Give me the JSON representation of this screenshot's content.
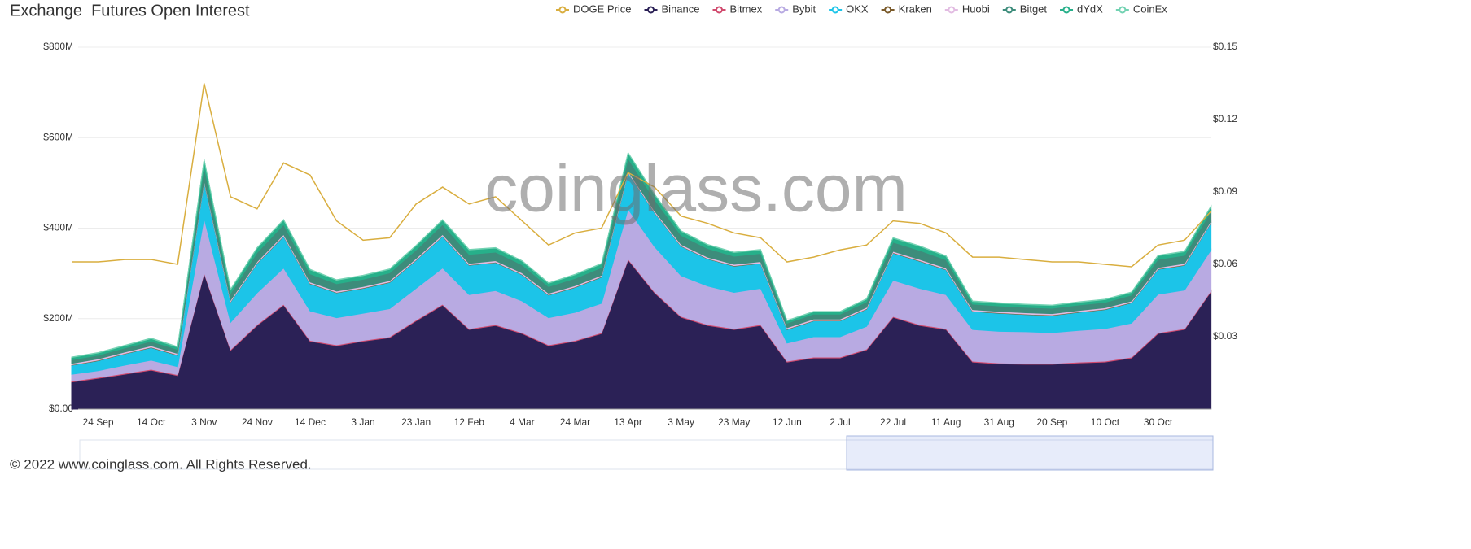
{
  "chart_data": {
    "type": "area",
    "title": "Exchange  Futures Open Interest",
    "watermark": "coinglass.com",
    "footer": "© 2022 www.coinglass.com. All Rights Reserved.",
    "categories": [
      null,
      "24 Sep",
      null,
      "14 Oct",
      null,
      "3 Nov",
      null,
      "24 Nov",
      null,
      "14 Dec",
      null,
      "3 Jan",
      null,
      "23 Jan",
      null,
      "12 Feb",
      null,
      "4 Mar",
      null,
      "24 Mar",
      null,
      "13 Apr",
      null,
      "3 May",
      null,
      "23 May",
      null,
      "12 Jun",
      null,
      "2 Jul",
      null,
      "22 Jul",
      null,
      "11 Aug",
      null,
      "31 Aug",
      null,
      "20 Sep",
      null,
      "10 Oct",
      null,
      "30 Oct",
      null,
      null
    ],
    "ylim": [
      0,
      800
    ],
    "yticks": [
      {
        "value": 0,
        "label": "$0.00"
      },
      {
        "value": 200,
        "label": "$200M"
      },
      {
        "value": 400,
        "label": "$400M"
      },
      {
        "value": 600,
        "label": "$600M"
      },
      {
        "value": 800,
        "label": "$800M"
      }
    ],
    "y2lim": [
      0,
      0.15
    ],
    "y2ticks": [
      {
        "value": 0.03,
        "label": "$0.03"
      },
      {
        "value": 0.06,
        "label": "$0.06"
      },
      {
        "value": 0.09,
        "label": "$0.09"
      },
      {
        "value": 0.12,
        "label": "$0.12"
      },
      {
        "value": 0.15,
        "label": "$0.15"
      }
    ],
    "grid": true,
    "legend": "top-right",
    "series": [
      {
        "name": "DOGE Price",
        "color": "#d9ae3f",
        "axis": "y2",
        "values": [
          0.061,
          0.061,
          0.062,
          0.062,
          0.06,
          0.135,
          0.088,
          0.083,
          0.102,
          0.097,
          0.078,
          0.07,
          0.071,
          0.085,
          0.092,
          0.085,
          0.088,
          0.078,
          0.068,
          0.073,
          0.075,
          0.098,
          0.092,
          0.08,
          0.077,
          0.073,
          0.071,
          0.061,
          0.063,
          0.066,
          0.068,
          0.078,
          0.077,
          0.073,
          0.063,
          0.063,
          0.062,
          0.061,
          0.061,
          0.06,
          0.059,
          0.068,
          0.07,
          0.082
        ]
      },
      {
        "name": "Binance",
        "color": "#2b2156",
        "values": [
          60,
          68,
          77,
          86,
          74,
          300,
          130,
          185,
          230,
          150,
          140,
          150,
          158,
          195,
          230,
          176,
          185,
          167,
          140,
          150,
          167,
          330,
          257,
          203,
          185,
          176,
          185,
          104,
          113,
          113,
          131,
          203,
          185,
          176,
          104,
          100,
          99,
          99,
          102,
          104,
          113,
          167,
          176,
          260
        ]
      },
      {
        "name": "Bitmex",
        "color": "#d14a6e",
        "values": [
          2,
          2,
          2,
          2,
          2,
          2,
          2,
          2,
          2,
          2,
          2,
          2,
          2,
          2,
          2,
          2,
          2,
          2,
          2,
          2,
          2,
          2,
          2,
          2,
          2,
          2,
          2,
          2,
          2,
          2,
          2,
          2,
          2,
          2,
          2,
          2,
          2,
          2,
          2,
          2,
          2,
          2,
          2,
          2
        ]
      },
      {
        "name": "Bybit",
        "color": "#b8aae2",
        "values": [
          15,
          15,
          18,
          20,
          18,
          120,
          60,
          70,
          80,
          65,
          60,
          60,
          62,
          70,
          80,
          75,
          75,
          70,
          60,
          62,
          65,
          110,
          100,
          90,
          85,
          80,
          80,
          40,
          45,
          45,
          50,
          80,
          80,
          75,
          70,
          70,
          70,
          68,
          70,
          72,
          75,
          85,
          85,
          90
        ]
      },
      {
        "name": "OKX",
        "color": "#1cc4e8",
        "values": [
          20,
          22,
          25,
          28,
          25,
          80,
          45,
          65,
          70,
          60,
          55,
          55,
          58,
          62,
          70,
          65,
          62,
          58,
          50,
          55,
          58,
          80,
          75,
          65,
          60,
          58,
          55,
          30,
          35,
          35,
          38,
          60,
          60,
          55,
          40,
          40,
          38,
          38,
          40,
          42,
          45,
          55,
          55,
          60
        ]
      },
      {
        "name": "Kraken",
        "color": "#7a5a2a",
        "values": [
          1,
          1,
          1,
          1,
          1,
          1,
          1,
          1,
          1,
          1,
          1,
          1,
          1,
          1,
          1,
          1,
          1,
          1,
          1,
          1,
          1,
          1,
          1,
          1,
          1,
          1,
          1,
          1,
          1,
          1,
          1,
          1,
          1,
          1,
          1,
          1,
          1,
          1,
          1,
          1,
          1,
          1,
          1,
          1
        ]
      },
      {
        "name": "Huobi",
        "color": "#e2bce2",
        "values": [
          3,
          3,
          3,
          3,
          3,
          3,
          3,
          3,
          3,
          3,
          3,
          3,
          3,
          3,
          3,
          3,
          3,
          3,
          3,
          3,
          3,
          3,
          3,
          3,
          3,
          3,
          3,
          3,
          3,
          3,
          3,
          3,
          3,
          3,
          3,
          3,
          3,
          3,
          3,
          3,
          3,
          3,
          3,
          3
        ]
      },
      {
        "name": "Bitget",
        "color": "#3d8c7b",
        "values": [
          8,
          8,
          9,
          10,
          9,
          30,
          15,
          20,
          22,
          18,
          16,
          16,
          17,
          19,
          22,
          20,
          19,
          18,
          15,
          16,
          17,
          28,
          25,
          20,
          19,
          18,
          18,
          10,
          11,
          11,
          12,
          20,
          20,
          18,
          12,
          12,
          12,
          12,
          12,
          12,
          13,
          18,
          18,
          22
        ]
      },
      {
        "name": "dYdX",
        "color": "#27b08a",
        "values": [
          5,
          5,
          5,
          6,
          5,
          15,
          8,
          10,
          10,
          9,
          8,
          8,
          8,
          9,
          10,
          10,
          9,
          8,
          7,
          8,
          8,
          12,
          11,
          9,
          8,
          8,
          8,
          5,
          5,
          5,
          6,
          9,
          9,
          8,
          6,
          6,
          6,
          6,
          6,
          6,
          6,
          8,
          8,
          10
        ]
      },
      {
        "name": "CoinEx",
        "color": "#72d2b2",
        "values": [
          1,
          1,
          1,
          1,
          1,
          1,
          1,
          1,
          1,
          1,
          1,
          1,
          1,
          1,
          1,
          1,
          1,
          1,
          1,
          1,
          1,
          1,
          1,
          1,
          1,
          1,
          1,
          1,
          1,
          1,
          1,
          1,
          1,
          1,
          1,
          1,
          1,
          1,
          1,
          1,
          1,
          1,
          1,
          1
        ]
      }
    ]
  }
}
